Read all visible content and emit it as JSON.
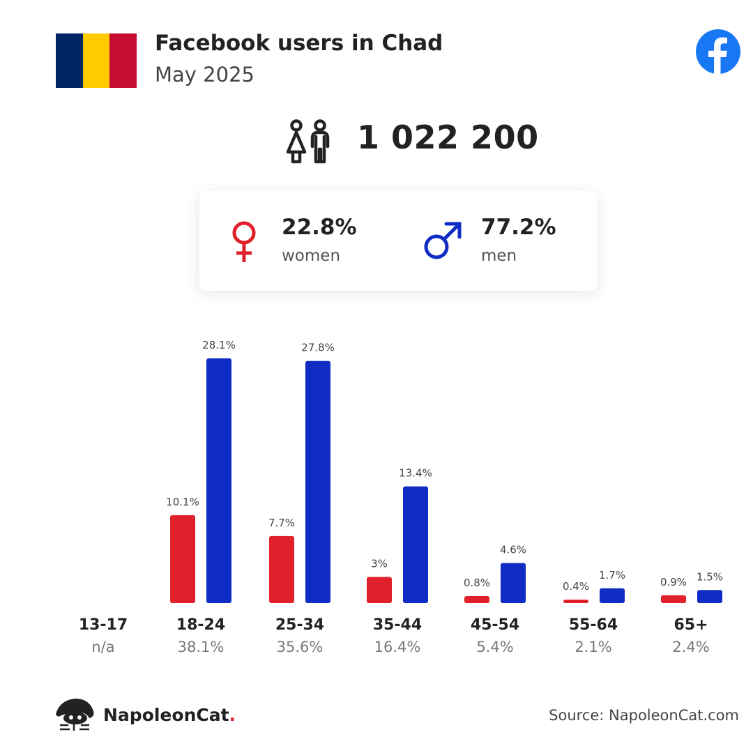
{
  "header": {
    "title": "Facebook users in Chad",
    "subtitle": "May 2025",
    "flag_colors": [
      "#002664",
      "#FECB00",
      "#C60C30"
    ],
    "platform_icon": "facebook-icon",
    "platform_color": "#1877F2"
  },
  "total": {
    "icon": "users-icon",
    "value": "1 022 200"
  },
  "gender": {
    "women": {
      "icon": "female-icon",
      "percent": "22.8%",
      "label": "women",
      "color": "#E0202A"
    },
    "men": {
      "icon": "male-icon",
      "percent": "77.2%",
      "label": "men",
      "color": "#0F2CC4"
    }
  },
  "chart_data": {
    "type": "bar",
    "categories": [
      "13-17",
      "18-24",
      "25-34",
      "35-44",
      "45-54",
      "55-64",
      "65+"
    ],
    "category_shares": [
      "n/a",
      "38.1%",
      "35.6%",
      "16.4%",
      "5.4%",
      "2.1%",
      "2.4%"
    ],
    "series": [
      {
        "color": "#E0202A",
        "values": [
          null,
          10.1,
          7.7,
          3,
          0.8,
          0.4,
          0.9
        ],
        "labels": [
          "",
          "10.1%",
          "7.7%",
          "3%",
          "0.8%",
          "0.4%",
          "0.9%"
        ]
      },
      {
        "color": "#0F2CC4",
        "values": [
          null,
          28.1,
          27.8,
          13.4,
          4.6,
          1.7,
          1.5
        ],
        "labels": [
          "",
          "28.1%",
          "27.8%",
          "13.4%",
          "4.6%",
          "1.7%",
          "1.5%"
        ]
      }
    ],
    "ylim": [
      0,
      28.1
    ]
  },
  "footer": {
    "brand_name": "NapoleonCat",
    "brand_dot": ".",
    "brand_icon": "napoleoncat-logo-icon",
    "source": "Source: NapoleonCat.com"
  }
}
